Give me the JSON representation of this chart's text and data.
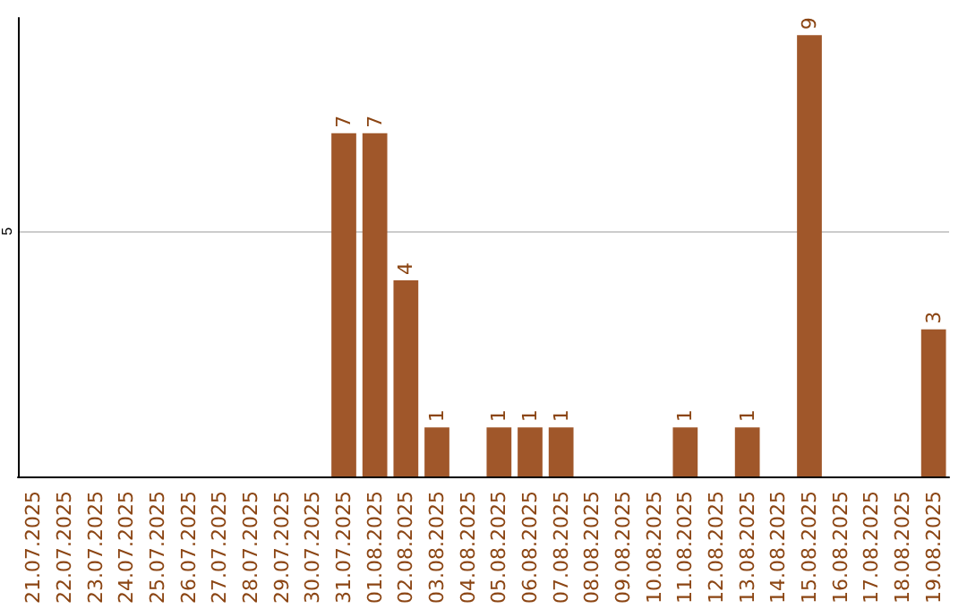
{
  "chart_data": {
    "type": "bar",
    "categories": [
      "21.07.2025",
      "22.07.2025",
      "23.07.2025",
      "24.07.2025",
      "25.07.2025",
      "26.07.2025",
      "27.07.2025",
      "28.07.2025",
      "29.07.2025",
      "30.07.2025",
      "31.07.2025",
      "01.08.2025",
      "02.08.2025",
      "03.08.2025",
      "04.08.2025",
      "05.08.2025",
      "06.08.2025",
      "07.08.2025",
      "08.08.2025",
      "09.08.2025",
      "10.08.2025",
      "11.08.2025",
      "12.08.2025",
      "13.08.2025",
      "14.08.2025",
      "15.08.2025",
      "16.08.2025",
      "17.08.2025",
      "18.08.2025",
      "19.08.2025"
    ],
    "values": [
      null,
      null,
      null,
      null,
      null,
      null,
      null,
      null,
      null,
      null,
      7,
      7,
      4,
      1,
      null,
      1,
      1,
      1,
      null,
      null,
      null,
      1,
      null,
      1,
      null,
      9,
      null,
      null,
      null,
      3
    ],
    "color": "#a0572a",
    "ylim": [
      0,
      9.35
    ],
    "yticks": [
      5
    ],
    "grid": true,
    "data_labels": true
  }
}
